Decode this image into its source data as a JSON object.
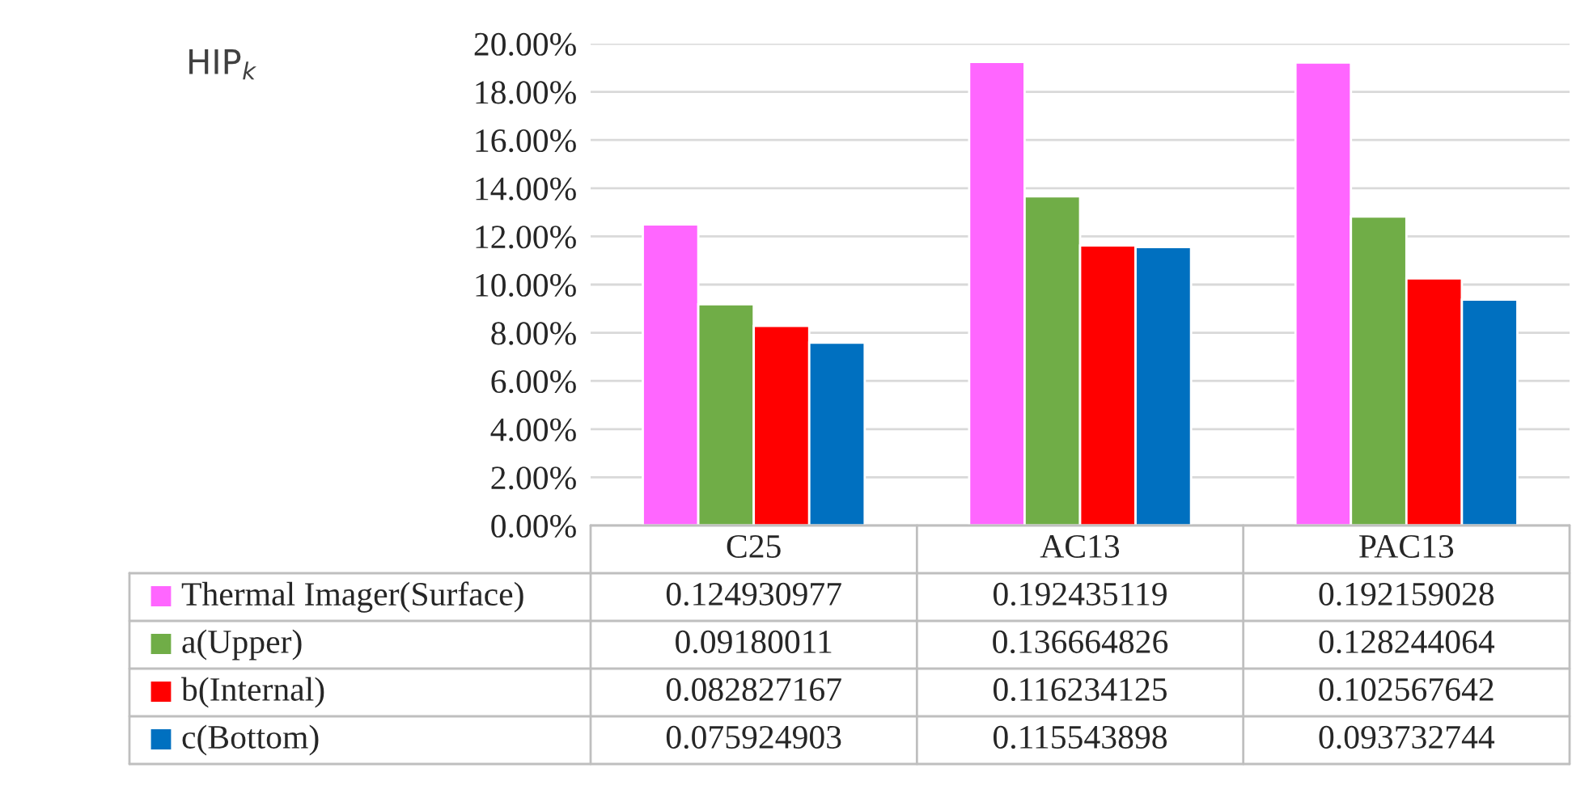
{
  "chart_data": {
    "type": "bar",
    "annotations": [
      "HIP$_{k}$"
    ],
    "categories": [
      "C25",
      "AC13",
      "PAC13"
    ],
    "series": [
      {
        "name": "Thermal Imager(Surface)",
        "color": "#ff66ff",
        "values": [
          0.124930977,
          0.192435119,
          0.192159028
        ]
      },
      {
        "name": "a(Upper)",
        "color": "#70ad47",
        "values": [
          0.09180011,
          0.136664826,
          0.128244064
        ]
      },
      {
        "name": "b(Internal)",
        "color": "#ff0000",
        "values": [
          0.082827167,
          0.116234125,
          0.102567642
        ]
      },
      {
        "name": "c(Bottom)",
        "color": "#0070c0",
        "values": [
          0.075924903,
          0.115543898,
          0.093732744
        ]
      }
    ],
    "ylim": [
      0,
      0.2
    ],
    "yticks": [
      {
        "value": 0,
        "label": "0.00%"
      },
      {
        "value": 0.02,
        "label": "2.00%"
      },
      {
        "value": 0.04,
        "label": "4.00%"
      },
      {
        "value": 0.06,
        "label": "6.00%"
      },
      {
        "value": 0.08,
        "label": "8.00%"
      },
      {
        "value": 0.1,
        "label": "10.00%"
      },
      {
        "value": 0.12,
        "label": "12.00%"
      },
      {
        "value": 0.14,
        "label": "14.00%"
      },
      {
        "value": 0.16,
        "label": "16.00%"
      },
      {
        "value": 0.18,
        "label": "18.00%"
      },
      {
        "value": 0.2,
        "label": "20.00%"
      }
    ],
    "grid": "y",
    "legend": "bottom",
    "data_labels": true
  }
}
